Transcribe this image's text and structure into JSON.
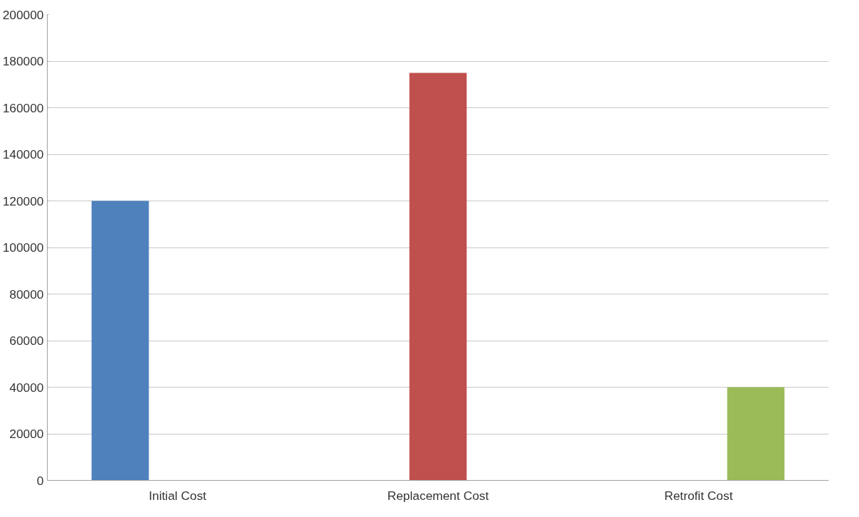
{
  "chart_data": {
    "type": "bar",
    "categories": [
      "Initial Cost",
      "Replacement Cost",
      "Retrofit Cost"
    ],
    "series": [
      {
        "color": "#4f81bd",
        "values": [
          120000,
          null,
          null
        ]
      },
      {
        "color": "#c0504d",
        "values": [
          null,
          175000,
          null
        ]
      },
      {
        "color": "#9bbb59",
        "values": [
          null,
          null,
          40000
        ]
      }
    ],
    "ylim": [
      0,
      200000
    ],
    "yticks": [
      0,
      20000,
      40000,
      60000,
      80000,
      100000,
      120000,
      140000,
      160000,
      180000,
      200000
    ],
    "grid": "y"
  }
}
